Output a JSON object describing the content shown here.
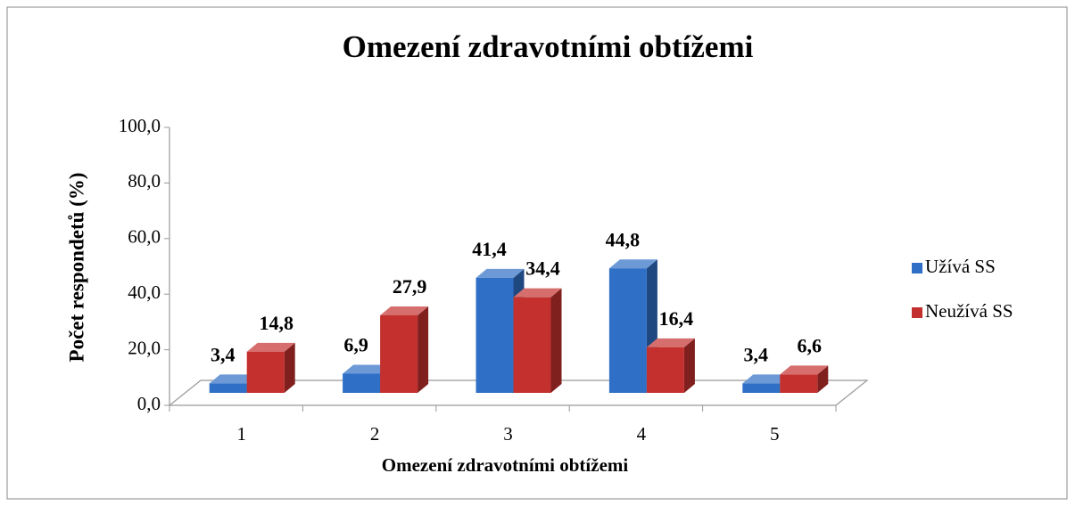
{
  "chart_data": {
    "type": "bar3d",
    "title": "Omezení zdravotními obtížemi",
    "x_label": "Omezení zdravotními obtížemi",
    "y_label": "Počet respondetů (%)",
    "categories": [
      "1",
      "2",
      "3",
      "4",
      "5"
    ],
    "series": [
      {
        "name": "Užívá SS",
        "color": "#2f6fc6",
        "values": [
          3.4,
          6.9,
          41.4,
          44.8,
          3.4
        ],
        "value_labels": [
          "3,4",
          "6,9",
          "41,4",
          "44,8",
          "3,4"
        ]
      },
      {
        "name": "Neužívá SS",
        "color": "#c3302e",
        "values": [
          14.8,
          27.9,
          34.4,
          16.4,
          6.6
        ],
        "value_labels": [
          "14,8",
          "27,9",
          "34,4",
          "16,4",
          "6,6"
        ]
      }
    ],
    "ylim": [
      0,
      100
    ],
    "yticks": [
      {
        "value": 0,
        "label": "0,0"
      },
      {
        "value": 20,
        "label": "20,0"
      },
      {
        "value": 40,
        "label": "40,0"
      },
      {
        "value": 60,
        "label": "60,0"
      },
      {
        "value": 80,
        "label": "80,0"
      },
      {
        "value": 100,
        "label": "100,0"
      }
    ],
    "legend": "right"
  }
}
